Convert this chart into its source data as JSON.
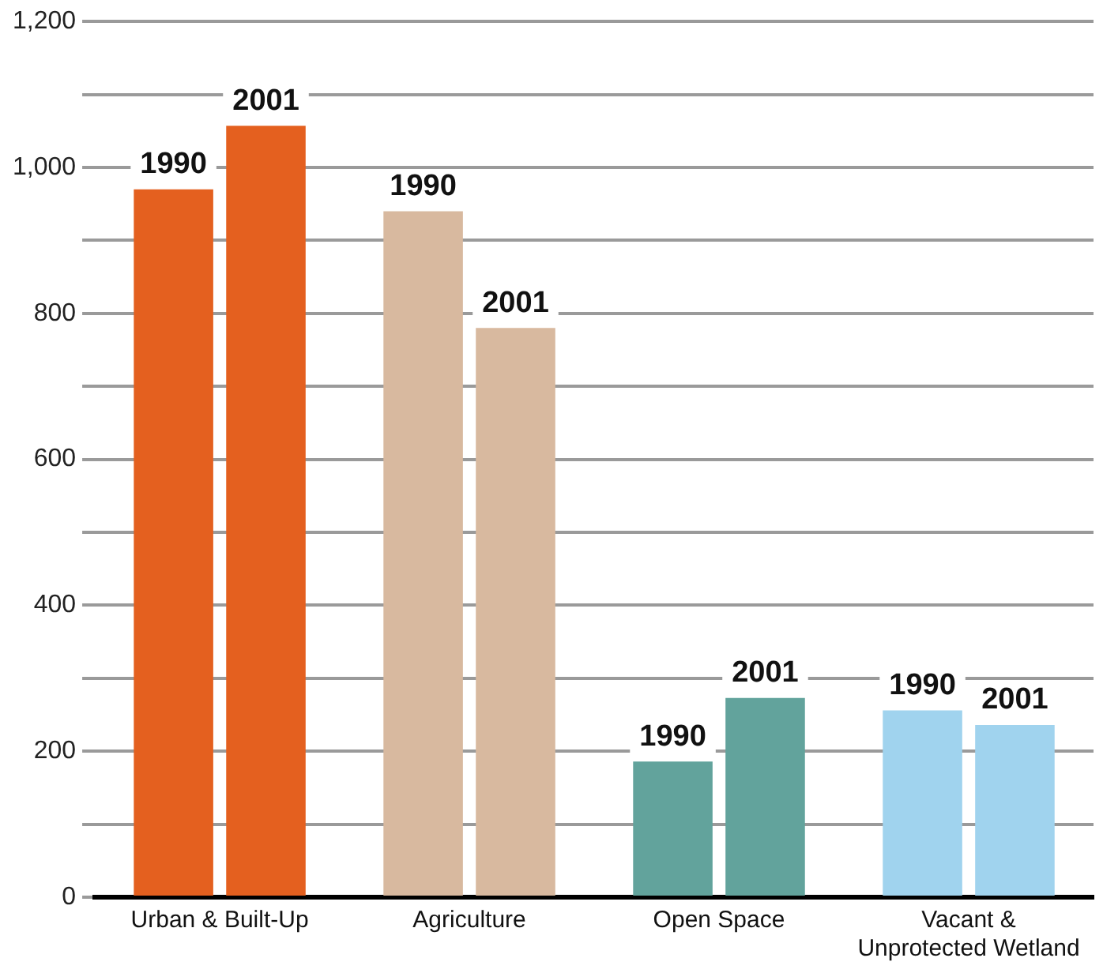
{
  "chart_data": {
    "type": "bar",
    "categories": [
      "Urban & Built-Up",
      "Agriculture",
      "Open Space",
      "Vacant & Unprotected Wetland"
    ],
    "series": [
      {
        "name": "1990",
        "colors": [
          "#e4601f",
          "#d8b99f",
          "#62a39c",
          "#a0d3ee"
        ],
        "values": [
          970,
          940,
          186,
          256
        ]
      },
      {
        "name": "2001",
        "colors": [
          "#e4601f",
          "#d8b99f",
          "#62a39c",
          "#a0d3ee"
        ],
        "values": [
          1057,
          780,
          273,
          236
        ]
      }
    ],
    "ylim": [
      0,
      1200
    ],
    "yticks": [
      0,
      {
        "value": 100,
        "label": null
      },
      200,
      {
        "value": 300,
        "label": null
      },
      400,
      {
        "value": 500,
        "label": null
      },
      600,
      {
        "value": 700,
        "label": null
      },
      800,
      {
        "value": 900,
        "label": null
      },
      {
        "value": 1000,
        "label": "1,000"
      },
      {
        "value": 1100,
        "label": null
      },
      {
        "value": 1200,
        "label": "1,200"
      }
    ],
    "grid": "y",
    "legend": false
  }
}
